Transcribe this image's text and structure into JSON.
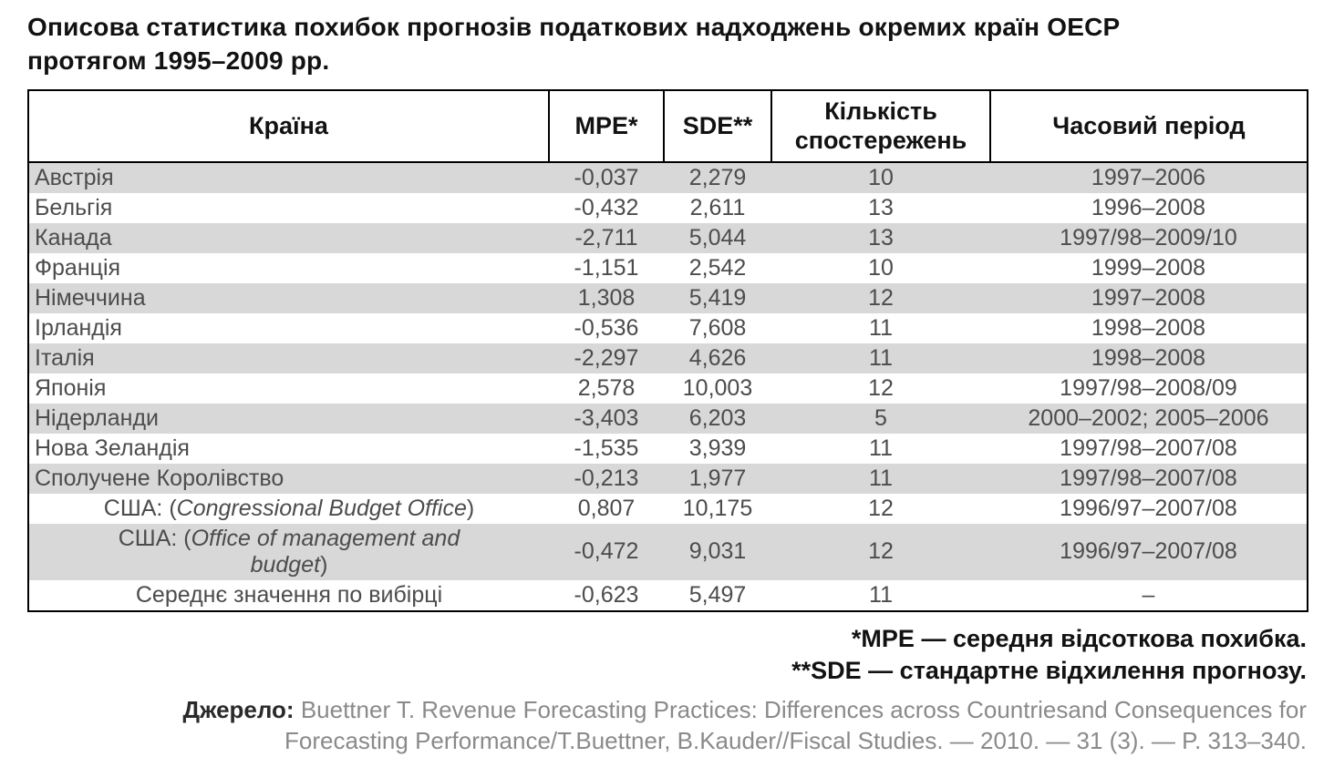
{
  "title": {
    "line1": "Описова статистика похибок прогнозів податкових надходжень окремих країн ОЕСР",
    "line2": "протягом 1995–2009 рр."
  },
  "table": {
    "headers": {
      "country": "Країна",
      "mpe": "MPE*",
      "sde": "SDE**",
      "obs": "Кількість спостережень",
      "period": "Часовий період"
    },
    "rows": [
      {
        "country": "Австрія",
        "mpe": "-0,037",
        "sde": "2,279",
        "obs": "10",
        "period": "1997–2006"
      },
      {
        "country": "Бельгія",
        "mpe": "-0,432",
        "sde": "2,611",
        "obs": "13",
        "period": "1996–2008"
      },
      {
        "country": "Канада",
        "mpe": "-2,711",
        "sde": "5,044",
        "obs": "13",
        "period": "1997/98–2009/10"
      },
      {
        "country": "Франція",
        "mpe": "-1,151",
        "sde": "2,542",
        "obs": "10",
        "period": "1999–2008"
      },
      {
        "country": "Німеччина",
        "mpe": "1,308",
        "sde": "5,419",
        "obs": "12",
        "period": "1997–2008"
      },
      {
        "country": "Ірландія",
        "mpe": "-0,536",
        "sde": "7,608",
        "obs": "11",
        "period": "1998–2008"
      },
      {
        "country": "Італія",
        "mpe": "-2,297",
        "sde": "4,626",
        "obs": "11",
        "period": "1998–2008"
      },
      {
        "country": "Японія",
        "mpe": "2,578",
        "sde": "10,003",
        "obs": "12",
        "period": "1997/98–2008/09"
      },
      {
        "country": "Нідерланди",
        "mpe": "-3,403",
        "sde": "6,203",
        "obs": "5",
        "period": "2000–2002; 2005–2006"
      },
      {
        "country": "Нова Зеландія",
        "mpe": "-1,535",
        "sde": "3,939",
        "obs": "11",
        "period": "1997/98–2007/08"
      },
      {
        "country": "Сполучене Королівство",
        "mpe": "-0,213",
        "sde": "1,977",
        "obs": "11",
        "period": "1997/98–2007/08"
      },
      {
        "country": "США: (",
        "it1": "Congressional Budget Office",
        "post": ")",
        "center": true,
        "mpe": "0,807",
        "sde": "10,175",
        "obs": "12",
        "period": "1996/97–2007/08"
      },
      {
        "country": "США: (",
        "it1": "Office of management and",
        "it2": "budget",
        "post": ")",
        "center": true,
        "mpe": "-0,472",
        "sde": "9,031",
        "obs": "12",
        "period": "1996/97–2007/08"
      },
      {
        "country": "Середнє значення по вибірці",
        "center": true,
        "mpe": "-0,623",
        "sde": "5,497",
        "obs": "11",
        "period": "–"
      }
    ]
  },
  "footnotes": {
    "line1": "*MPE — середня відсоткова похибка.",
    "line2": "**SDE — стандартне відхилення прогнозу."
  },
  "source": {
    "label": "Джерело:",
    "line1": " Buettner T. Revenue Forecasting Practices: Differences across Countriesand Consequences for",
    "line2": "Forecasting Performance/T.Buettner, B.Kauder//Fiscal Studies. — 2010. — 31 (3). — P. 313–340."
  }
}
